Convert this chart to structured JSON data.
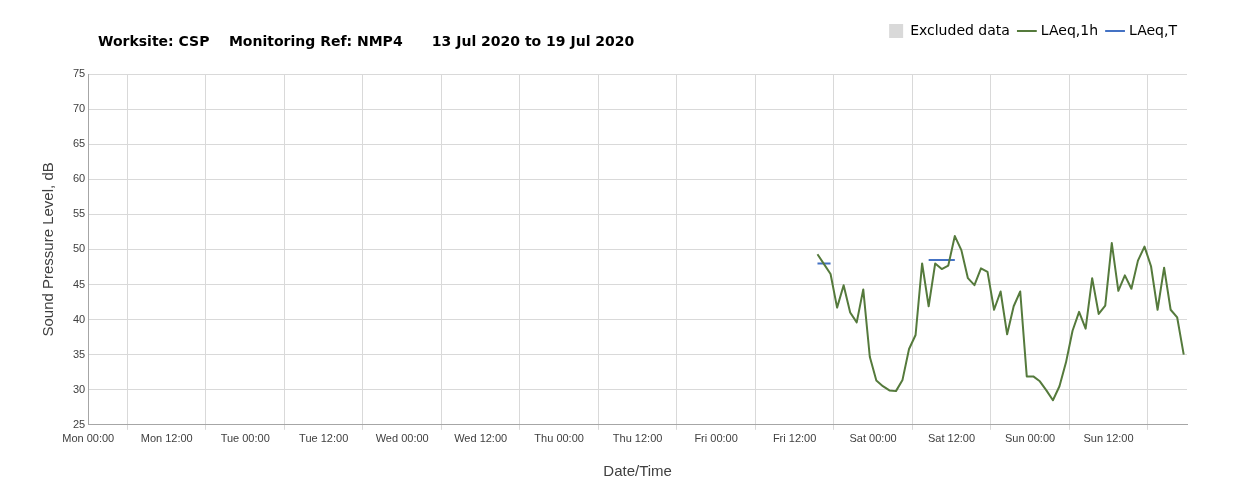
{
  "chart_data": {
    "type": "line",
    "title": "Worksite: CSP    Monitoring Ref: NMP4      13 Jul 2020 to 19 Jul 2020",
    "xlabel": "Date/Time",
    "ylabel": "Sound Pressure Level, dB",
    "xlim": [
      "2020-07-13T00:00",
      "2020-07-20T00:00"
    ],
    "xticks": [
      {
        "value": "2020-07-13T00:00",
        "label": "Mon 00:00"
      },
      {
        "value": "2020-07-13T12:00",
        "label": "Mon 12:00"
      },
      {
        "value": "2020-07-14T00:00",
        "label": "Tue 00:00"
      },
      {
        "value": "2020-07-14T12:00",
        "label": "Tue 12:00"
      },
      {
        "value": "2020-07-15T00:00",
        "label": "Wed 00:00"
      },
      {
        "value": "2020-07-15T12:00",
        "label": "Wed 12:00"
      },
      {
        "value": "2020-07-16T00:00",
        "label": "Thu 00:00"
      },
      {
        "value": "2020-07-16T12:00",
        "label": "Thu 12:00"
      },
      {
        "value": "2020-07-17T00:00",
        "label": "Fri 00:00"
      },
      {
        "value": "2020-07-17T12:00",
        "label": "Fri 12:00"
      },
      {
        "value": "2020-07-18T00:00",
        "label": "Sat 00:00"
      },
      {
        "value": "2020-07-18T12:00",
        "label": "Sat 12:00"
      },
      {
        "value": "2020-07-19T00:00",
        "label": "Sun 00:00"
      },
      {
        "value": "2020-07-19T12:00",
        "label": "Sun 12:00"
      }
    ],
    "ylim": [
      25,
      75
    ],
    "yticks": [
      25,
      30,
      35,
      40,
      45,
      50,
      55,
      60,
      65,
      70,
      75
    ],
    "grid": true,
    "legend": "top right",
    "marker": "none",
    "line_style": "solid",
    "series": [
      {
        "name": "Excluded data",
        "type": "bar",
        "color": "#d9d9d9"
      },
      {
        "name": "LAeq,1h",
        "color": "#557a3c",
        "x": [
          "2020-07-17T15:30",
          "2020-07-17T16:30",
          "2020-07-17T17:30",
          "2020-07-17T18:30",
          "2020-07-17T19:30",
          "2020-07-17T20:30",
          "2020-07-17T21:30",
          "2020-07-17T22:30",
          "2020-07-17T23:30",
          "2020-07-18T00:30",
          "2020-07-18T01:30",
          "2020-07-18T02:30",
          "2020-07-18T03:30",
          "2020-07-18T04:30",
          "2020-07-18T05:30",
          "2020-07-18T06:30",
          "2020-07-18T07:30",
          "2020-07-18T08:30",
          "2020-07-18T09:30",
          "2020-07-18T10:30",
          "2020-07-18T11:30",
          "2020-07-18T12:30",
          "2020-07-18T13:30",
          "2020-07-18T14:30",
          "2020-07-18T15:30",
          "2020-07-18T16:30",
          "2020-07-18T17:30",
          "2020-07-18T18:30",
          "2020-07-18T19:30",
          "2020-07-18T20:30",
          "2020-07-18T21:30",
          "2020-07-18T22:30",
          "2020-07-18T23:30",
          "2020-07-19T00:30",
          "2020-07-19T01:30",
          "2020-07-19T02:30",
          "2020-07-19T03:30",
          "2020-07-19T04:30",
          "2020-07-19T05:30",
          "2020-07-19T06:30",
          "2020-07-19T07:30",
          "2020-07-19T08:30",
          "2020-07-19T09:30",
          "2020-07-19T10:30",
          "2020-07-19T11:30",
          "2020-07-19T12:30",
          "2020-07-19T13:30",
          "2020-07-19T14:30",
          "2020-07-19T15:30",
          "2020-07-19T16:30",
          "2020-07-19T17:30",
          "2020-07-19T18:30",
          "2020-07-19T19:30",
          "2020-07-19T20:30",
          "2020-07-19T21:30",
          "2020-07-19T22:30",
          "2020-07-19T23:30"
        ],
        "values": [
          49.3,
          47.9,
          46.5,
          41.7,
          44.9,
          41.0,
          39.6,
          44.3,
          34.7,
          31.3,
          30.5,
          29.9,
          29.8,
          31.4,
          35.8,
          37.8,
          48.0,
          41.9,
          48.0,
          47.2,
          47.7,
          51.9,
          49.9,
          45.9,
          44.9,
          47.3,
          46.8,
          41.4,
          44.0,
          37.9,
          41.9,
          44.0,
          31.9,
          31.9,
          31.2,
          29.9,
          28.5,
          30.5,
          33.9,
          38.4,
          41.1,
          38.7,
          45.9,
          40.8,
          42.0,
          50.9,
          44.1,
          46.3,
          44.4,
          48.4,
          50.4,
          47.6,
          41.4,
          47.4,
          41.4,
          40.3,
          35.0
        ]
      },
      {
        "name": "LAeq,T",
        "color": "#4472c4",
        "x": [
          "2020-07-17T15:30",
          "2020-07-17T17:30",
          "2020-07-18T00:00",
          "2020-07-18T08:30",
          "2020-07-18T12:30"
        ],
        "values": [
          48.0,
          48.0,
          null,
          48.5,
          48.5
        ]
      }
    ]
  }
}
